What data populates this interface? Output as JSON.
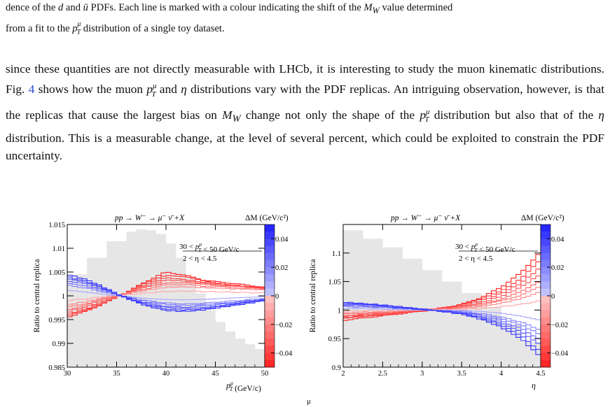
{
  "caption_tail": {
    "line1_a": "dence of the ",
    "line1_b": " and ",
    "line1_c": " PDFs. Each line is marked with a colour indicating the shift of the ",
    "line1_d": " value determined",
    "line2_a": "from a fit to the ",
    "line2_b": " distribution of a single toy dataset.",
    "sym_d": "d",
    "sym_ubar": "ū",
    "sym_MW": "M",
    "sym_MW_sub": "W",
    "sym_pT": "p",
    "sym_pT_sup": "μ",
    "sym_pT_sub": "T"
  },
  "body": {
    "t1": "since these quantities are not directly measurable with LHCb, it is interesting to study the muon kinematic distributions. Fig. ",
    "ref": "4",
    "t2": " shows how the muon ",
    "t3": " and ",
    "eta": "η",
    "t4": " distributions vary with the PDF replicas. An intriguing observation, however, is that the replicas that cause the largest bias on ",
    "t5": " change not only the shape of the ",
    "t6": " distribution but also that of the ",
    "t7": " distribution. This is a measurable change, at the level of several percent, which could be exploited to constrain the PDF uncertainty."
  },
  "chart_data": [
    {
      "type": "line",
      "process_label": "pp → W⁻ → μ⁻ ν̄ +X",
      "colorbar_title": "ΔM (GeV/c²)",
      "cut_label_1": "30 < p_T^μ < 50 GeV/c",
      "cut_label_2": "2 < η < 4.5",
      "ylabel": "Ratio to central replica",
      "xlabel": "p_T^μ (GeV/c)",
      "xlim": [
        30,
        50
      ],
      "ylim": [
        0.985,
        1.015
      ],
      "xticks": [
        "30",
        "35",
        "40",
        "45",
        "50"
      ],
      "yticks": [
        "0.985",
        "0.99",
        "0.995",
        "1",
        "1.005",
        "1.01",
        "1.015"
      ],
      "colorbar_ticks": [
        "0.04",
        "0.02",
        "0",
        "−0.02",
        "−0.04"
      ],
      "colorbar_range": [
        -0.05,
        0.05
      ],
      "background_histogram": {
        "x": [
          30,
          32,
          34,
          36,
          37,
          38,
          39,
          40,
          41,
          42,
          43,
          44,
          45,
          46,
          47,
          48,
          49,
          50
        ],
        "y": [
          1.0045,
          1.008,
          1.0115,
          1.0135,
          1.014,
          1.0138,
          1.013,
          1.011,
          1.008,
          1.004,
          1.0005,
          0.997,
          0.9945,
          0.9925,
          0.991,
          0.9898,
          0.9888,
          0.988
        ]
      },
      "x_nodes": [
        30,
        32,
        34,
        36,
        38,
        40,
        42,
        44,
        46,
        48,
        50
      ],
      "replicas": [
        {
          "dM": -0.05,
          "values": [
            0.9955,
            0.9968,
            0.9987,
            1.0007,
            1.003,
            1.005,
            1.0043,
            1.0032,
            1.0028,
            1.0023,
            1.0018
          ]
        },
        {
          "dM": -0.045,
          "values": [
            0.9958,
            0.997,
            0.9988,
            1.0007,
            1.0027,
            1.0044,
            1.004,
            1.003,
            1.0025,
            1.002,
            1.0015
          ]
        },
        {
          "dM": -0.04,
          "values": [
            0.9962,
            0.9973,
            0.999,
            1.0006,
            1.0024,
            1.0038,
            1.0034,
            1.0028,
            1.0024,
            1.002,
            1.0016
          ]
        },
        {
          "dM": -0.035,
          "values": [
            0.9967,
            0.9977,
            0.9992,
            1.0006,
            1.0021,
            1.0033,
            1.0031,
            1.0026,
            1.0022,
            1.0019,
            1.0015
          ]
        },
        {
          "dM": -0.03,
          "values": [
            0.9971,
            0.9981,
            0.9994,
            1.0005,
            1.0018,
            1.0028,
            1.0027,
            1.0024,
            1.0021,
            1.0018,
            1.0015
          ]
        },
        {
          "dM": -0.025,
          "values": [
            0.9976,
            0.9984,
            0.9996,
            1.0005,
            1.0015,
            1.0023,
            1.0024,
            1.002,
            1.0018,
            1.0016,
            1.0014
          ]
        },
        {
          "dM": -0.02,
          "values": [
            0.9981,
            0.9988,
            0.9997,
            1.0004,
            1.0012,
            1.0018,
            1.0019,
            1.0017,
            1.0015,
            1.0014,
            1.0012
          ]
        },
        {
          "dM": -0.01,
          "values": [
            0.999,
            0.9994,
            0.9999,
            1.0002,
            1.0006,
            1.0009,
            1.001,
            1.0009,
            1.0008,
            1.0007,
            1.0006
          ]
        },
        {
          "dM": 0.01,
          "values": [
            1.0012,
            1.0008,
            1.0003,
            0.9999,
            0.9995,
            0.9992,
            0.9991,
            0.9992,
            0.9994,
            0.9996,
            0.9998
          ]
        },
        {
          "dM": 0.02,
          "values": [
            1.0022,
            1.0016,
            1.0006,
            0.9998,
            0.999,
            0.9985,
            0.9983,
            0.9985,
            0.9988,
            0.9991,
            0.9995
          ]
        },
        {
          "dM": 0.025,
          "values": [
            1.0027,
            1.002,
            1.0008,
            0.9997,
            0.9988,
            0.9982,
            0.998,
            0.9982,
            0.9985,
            0.9989,
            0.9994
          ]
        },
        {
          "dM": 0.03,
          "values": [
            1.0032,
            1.0024,
            1.001,
            0.9997,
            0.9985,
            0.9978,
            0.9976,
            0.9979,
            0.9983,
            0.9987,
            0.9993
          ]
        },
        {
          "dM": 0.035,
          "values": [
            1.0036,
            1.0027,
            1.0012,
            0.9996,
            0.9983,
            0.9975,
            0.9973,
            0.9976,
            0.9981,
            0.9986,
            0.9992
          ]
        },
        {
          "dM": 0.04,
          "values": [
            1.004,
            1.003,
            1.0013,
            0.9996,
            0.9981,
            0.9972,
            0.997,
            0.9973,
            0.9979,
            0.9985,
            0.9991
          ]
        },
        {
          "dM": 0.045,
          "values": [
            1.0045,
            1.0034,
            1.0015,
            0.9995,
            0.9979,
            0.9969,
            0.9967,
            0.9971,
            0.9977,
            0.9983,
            0.999
          ]
        }
      ]
    },
    {
      "type": "line",
      "process_label": "pp → W⁻ → μ⁻ ν̄ +X",
      "colorbar_title": "ΔM (GeV/c²)",
      "cut_label_1": "30 < p_T^μ < 50 GeV/c",
      "cut_label_2": "2 < η < 4.5",
      "ylabel": "Ratio to central replica",
      "xlabel": "η",
      "xlim": [
        2,
        4.5
      ],
      "ylim": [
        0.9,
        1.15
      ],
      "xticks": [
        "2",
        "2.5",
        "3",
        "3.5",
        "4",
        "4.5"
      ],
      "yticks": [
        "0.9",
        "0.95",
        "1",
        "1.05",
        "1.1"
      ],
      "colorbar_ticks": [
        "0.04",
        "0.02",
        "0",
        "−0.02",
        "−0.04"
      ],
      "colorbar_range": [
        -0.05,
        0.05
      ],
      "background_histogram": {
        "x": [
          2.0,
          2.25,
          2.5,
          2.75,
          3.0,
          3.25,
          3.5,
          3.75,
          4.0,
          4.25,
          4.5
        ],
        "y": [
          1.14,
          1.125,
          1.11,
          1.09,
          1.07,
          1.05,
          1.03,
          1.005,
          0.975,
          0.945,
          0.91
        ]
      },
      "x_nodes": [
        2.0,
        2.5,
        3.0,
        3.5,
        3.75,
        4.0,
        4.25,
        4.5
      ],
      "replicas": [
        {
          "dM": -0.05,
          "values": [
            0.982,
            0.99,
            0.998,
            1.01,
            1.022,
            1.04,
            1.065,
            1.102
          ]
        },
        {
          "dM": -0.045,
          "values": [
            0.985,
            0.992,
            0.999,
            1.009,
            1.019,
            1.034,
            1.055,
            1.088
          ]
        },
        {
          "dM": -0.04,
          "values": [
            0.987,
            0.993,
            0.999,
            1.008,
            1.016,
            1.029,
            1.047,
            1.075
          ]
        },
        {
          "dM": -0.035,
          "values": [
            0.989,
            0.994,
            1.0,
            1.006,
            1.013,
            1.024,
            1.04,
            1.063
          ]
        },
        {
          "dM": -0.03,
          "values": [
            0.991,
            0.995,
            1.0,
            1.005,
            1.011,
            1.019,
            1.032,
            1.052
          ]
        },
        {
          "dM": -0.025,
          "values": [
            0.993,
            0.996,
            1.0,
            1.004,
            1.009,
            1.016,
            1.026,
            1.042
          ]
        },
        {
          "dM": -0.02,
          "values": [
            0.995,
            0.997,
            1.0,
            1.003,
            1.006,
            1.012,
            1.02,
            1.032
          ]
        },
        {
          "dM": -0.01,
          "values": [
            0.998,
            0.999,
            1.0,
            1.001,
            1.003,
            1.006,
            1.01,
            1.016
          ]
        },
        {
          "dM": 0.01,
          "values": [
            1.003,
            1.002,
            1.0,
            0.999,
            0.997,
            0.994,
            0.989,
            0.982
          ]
        },
        {
          "dM": 0.02,
          "values": [
            1.006,
            1.004,
            1.001,
            0.998,
            0.994,
            0.988,
            0.979,
            0.965
          ]
        },
        {
          "dM": 0.025,
          "values": [
            1.008,
            1.005,
            1.001,
            0.997,
            0.992,
            0.985,
            0.974,
            0.957
          ]
        },
        {
          "dM": 0.03,
          "values": [
            1.01,
            1.006,
            1.001,
            0.996,
            0.99,
            0.981,
            0.968,
            0.948
          ]
        },
        {
          "dM": 0.035,
          "values": [
            1.011,
            1.007,
            1.001,
            0.995,
            0.988,
            0.978,
            0.962,
            0.938
          ]
        },
        {
          "dM": 0.04,
          "values": [
            1.013,
            1.008,
            1.001,
            0.994,
            0.986,
            0.974,
            0.956,
            0.927
          ]
        },
        {
          "dM": 0.045,
          "values": [
            1.014,
            1.009,
            1.002,
            0.993,
            0.984,
            0.97,
            0.95,
            0.918
          ]
        }
      ]
    }
  ],
  "fig_caption_stub": "μ"
}
